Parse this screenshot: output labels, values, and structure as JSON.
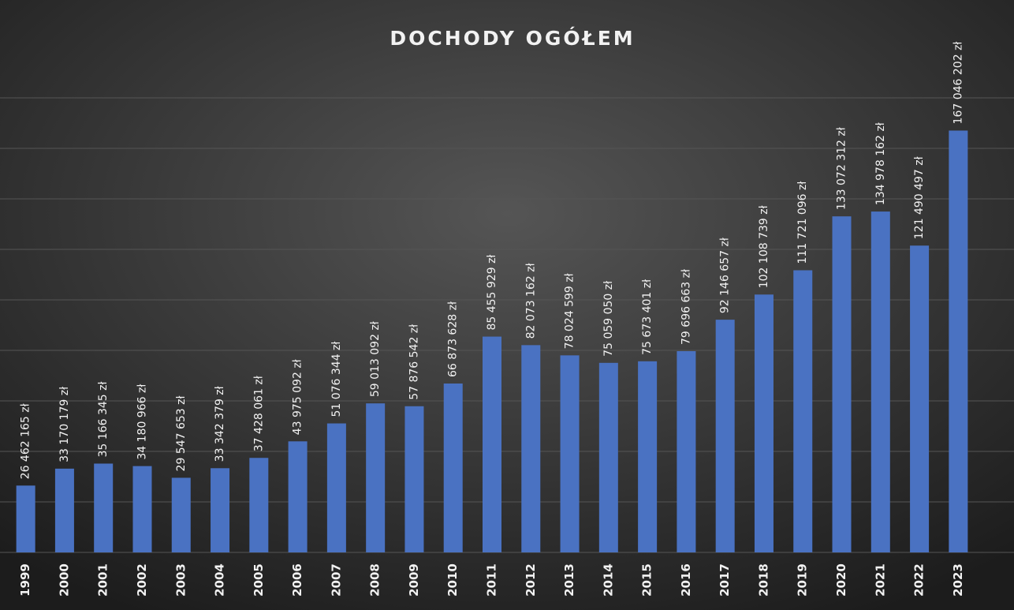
{
  "chart_data": {
    "type": "bar",
    "title": "DOCHODY OGÓŁEM",
    "categories": [
      "1999",
      "2000",
      "2001",
      "2002",
      "2003",
      "2004",
      "2005",
      "2006",
      "2007",
      "2008",
      "2009",
      "2010",
      "2011",
      "2012",
      "2013",
      "2014",
      "2015",
      "2016",
      "2017",
      "2018",
      "2019",
      "2020",
      "2021",
      "2022",
      "2023"
    ],
    "values": [
      26462165,
      33170179,
      35166345,
      34180966,
      29547653,
      33342379,
      37428061,
      43975092,
      51076344,
      59013092,
      57876542,
      66873628,
      85455929,
      82073162,
      78024599,
      75059050,
      75673401,
      79696663,
      92146657,
      102108739,
      111721096,
      133072312,
      134978162,
      121490497,
      167046202
    ],
    "value_labels": [
      "26 462 165 zł",
      "33 170 179 zł",
      "35 166 345 zł",
      "34 180 966 zł",
      "29 547 653 zł",
      "33 342 379 zł",
      "37 428 061 zł",
      "43 975 092 zł",
      "51 076 344 zł",
      "59 013 092 zł",
      "57 876 542 zł",
      "66 873 628 zł",
      "85 455 929 zł",
      "82 073 162 zł",
      "78 024 599 zł",
      "75 059 050 zł",
      "75 673 401 zł",
      "79 696 663 zł",
      "92 146 657 zł",
      "102 108 739 zł",
      "111 721 096 zł",
      "133 072 312 zł",
      "134 978 162 zł",
      "121 490 497 zł",
      "167 046 202 zł"
    ],
    "color": "#4a72c2",
    "ylim": [
      0,
      200000000
    ],
    "yticks": [
      0,
      20000000,
      40000000,
      60000000,
      80000000,
      100000000,
      120000000,
      140000000,
      160000000,
      180000000
    ],
    "grid": true
  }
}
